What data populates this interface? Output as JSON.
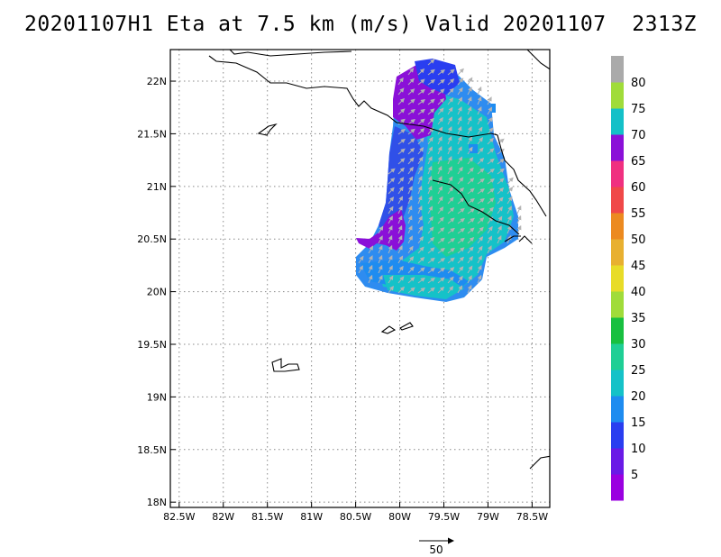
{
  "title": "20201107H1 Eta at 7.5 km (m/s) Valid 20201107  2313Z",
  "lon_ticks": [
    "82.5W",
    "82W",
    "81.5W",
    "81W",
    "80.5W",
    "80W",
    "79.5W",
    "79W",
    "78.5W"
  ],
  "lat_ticks": [
    "22N",
    "21.5N",
    "21N",
    "20.5N",
    "20N",
    "19.5N",
    "19N",
    "18.5N",
    "18N"
  ],
  "lon_range": [
    -82.6,
    -78.3
  ],
  "lat_range": [
    17.95,
    22.3
  ],
  "grid": "dotted",
  "colorbar": {
    "labels": [
      "5",
      "10",
      "15",
      "20",
      "25",
      "30",
      "35",
      "40",
      "45",
      "50",
      "55",
      "60",
      "65",
      "70",
      "75",
      "80"
    ],
    "colors": [
      "#9a00e0",
      "#6a1ae6",
      "#2a3ef0",
      "#1e8cf0",
      "#15c2c8",
      "#1fcf95",
      "#18c040",
      "#a0dc3a",
      "#e8dc28",
      "#e8b030",
      "#ec8a20",
      "#f04848",
      "#f03080",
      "#8a10d8",
      "#14c0c8",
      "#a0dc3a",
      "#aaaaaa"
    ]
  },
  "reference_vector": {
    "label": "50"
  }
}
